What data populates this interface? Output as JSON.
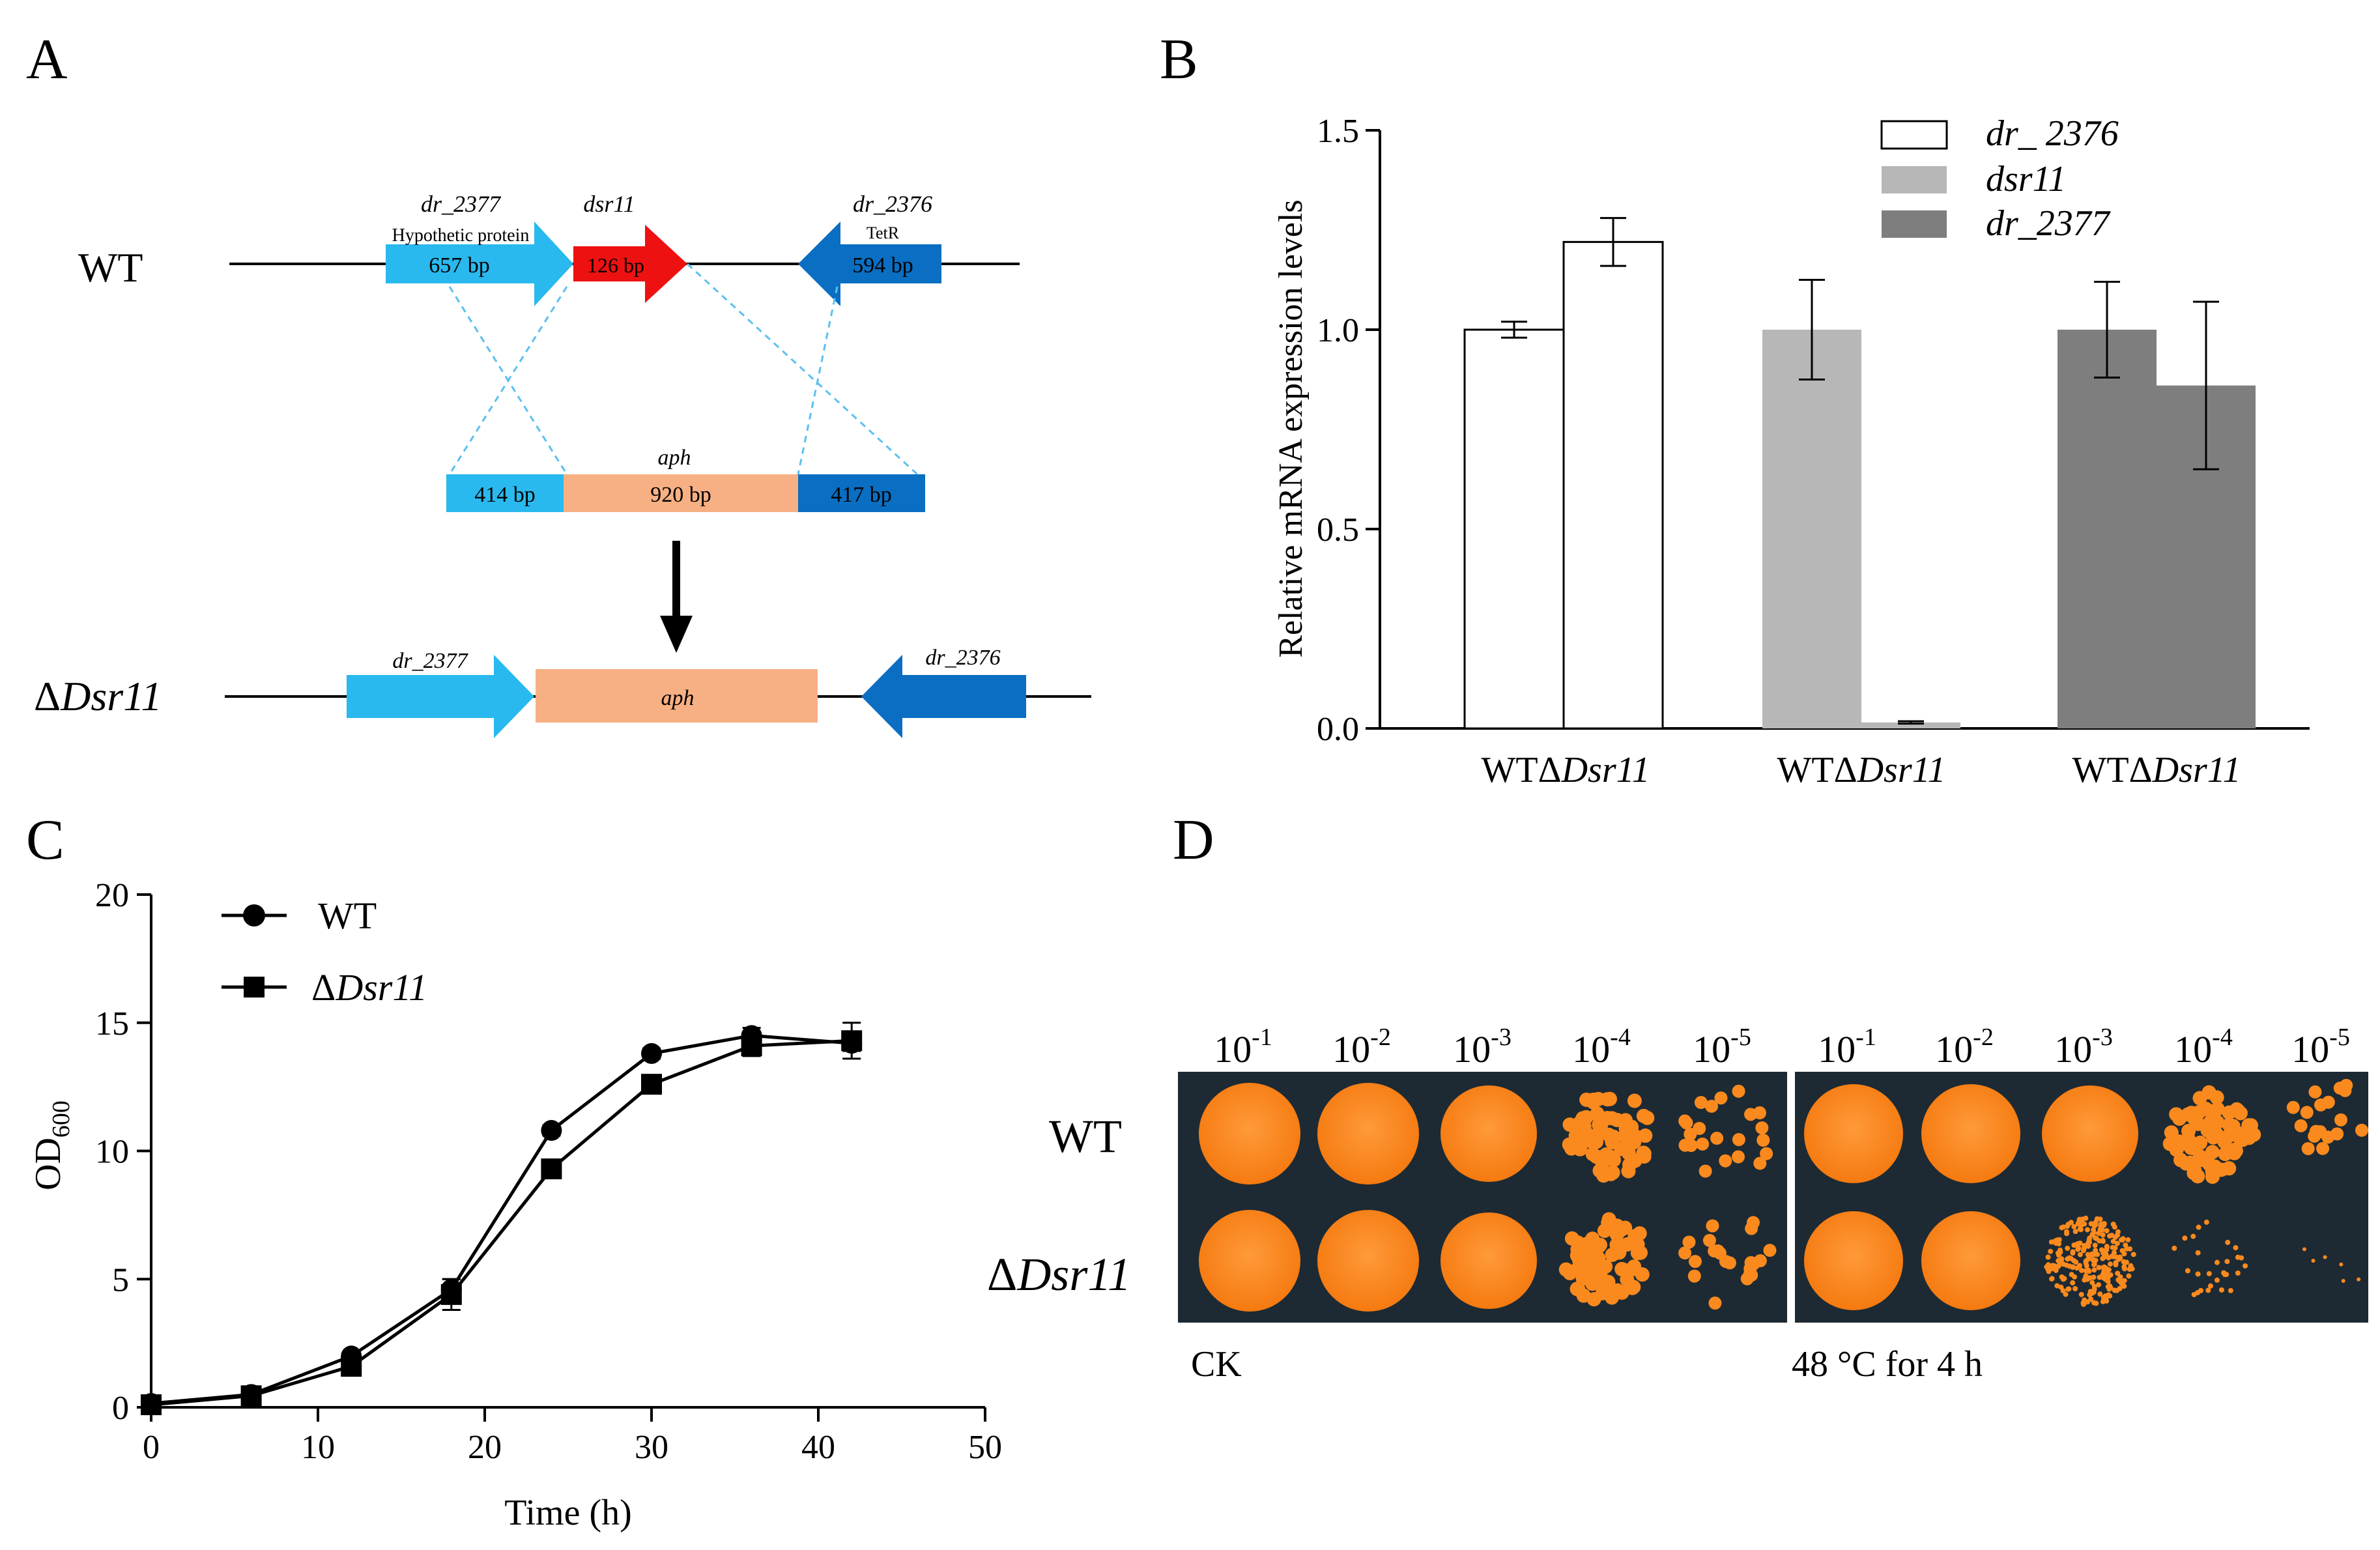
{
  "colors": {
    "light_blue": "#29B9EE",
    "dark_blue": "#0A6EC2",
    "red": "#EE1111",
    "peach": "#F7B083",
    "bar_white": "#FFFFFF",
    "bar_light_gray": "#B7B7B7",
    "bar_dark_gray": "#7E7E7E",
    "plate_bg": "#1D2A33",
    "colony_orange": "#FA8A1E"
  },
  "panelA": {
    "label": "A",
    "wt_label": "WT",
    "mutant_prefix": "Δ",
    "mutant_italic": "Dsr11",
    "genes": {
      "g2377_name": "dr_2377",
      "g2377_desc": "Hypothetic protein",
      "g2377_size": "657 bp",
      "dsr11_name": "dsr11",
      "dsr11_size": "126 bp",
      "g2376_name": "dr_2376",
      "g2376_desc": "TetR",
      "g2376_size": "594 bp"
    },
    "construct": {
      "left_size": "414 bp",
      "aph_name": "aph",
      "aph_size": "920 bp",
      "right_size": "417 bp"
    },
    "mutant_genes": {
      "left": "dr_2377",
      "middle": "aph",
      "right": "dr_2376"
    }
  },
  "panelB": {
    "label": "B",
    "legend": [
      "dr_ 2376",
      "dsr11",
      "dr_2377"
    ],
    "group_labels": [
      "WTΔDsr11",
      "WTΔDsr11",
      "WTΔDsr11"
    ],
    "group_prefix": "WTΔ",
    "group_italic": "Dsr11"
  },
  "panelC": {
    "label": "C",
    "legend": [
      "WT",
      "ΔDsr11"
    ],
    "legend_mutant_prefix": "Δ",
    "legend_mutant_italic": "Dsr11"
  },
  "panelD": {
    "label": "D",
    "dilutions": [
      "10-1",
      "10-2",
      "10-3",
      "10-4",
      "10-5"
    ],
    "row_wt": "WT",
    "row_mutant_prefix": "Δ",
    "row_mutant_italic": "Dsr11",
    "left_caption": "CK",
    "right_caption": "48 °C for 4 h"
  },
  "chart_data": [
    {
      "type": "bar",
      "panel": "B",
      "title": "",
      "ylabel": "Relative mRNA expression levels",
      "xlabel": "",
      "ylim": [
        0,
        1.5
      ],
      "yticks": [
        "0.0",
        "0.5",
        "1.0",
        "1.5"
      ],
      "groups": [
        {
          "name": "dr_ 2376",
          "categories": [
            "WT",
            "ΔDsr11"
          ],
          "values": [
            1.0,
            1.22
          ],
          "errors": [
            0.02,
            0.06
          ]
        },
        {
          "name": "dsr11",
          "categories": [
            "WT",
            "ΔDsr11"
          ],
          "values": [
            1.0,
            0.015
          ],
          "errors": [
            0.125,
            0.003
          ]
        },
        {
          "name": "dr_2377",
          "categories": [
            "WT",
            "ΔDsr11"
          ],
          "values": [
            1.0,
            0.86
          ],
          "errors": [
            0.12,
            0.21
          ]
        }
      ]
    },
    {
      "type": "line",
      "panel": "C",
      "xlabel": "Time (h)",
      "ylabel": "OD600",
      "ylabel_main": "OD",
      "ylabel_sub": "600",
      "xlim": [
        0,
        50
      ],
      "ylim": [
        0,
        20
      ],
      "xticks": [
        "0",
        "10",
        "20",
        "30",
        "40",
        "50"
      ],
      "yticks": [
        "0",
        "5",
        "10",
        "15",
        "20"
      ],
      "x": [
        0,
        6,
        12,
        18,
        24,
        30,
        36,
        42
      ],
      "series": [
        {
          "name": "WT",
          "marker": "circle",
          "values": [
            0.15,
            0.5,
            2.0,
            4.6,
            10.8,
            13.8,
            14.5,
            14.2
          ],
          "errors": [
            0.1,
            0.1,
            0.15,
            0.4,
            0.2,
            0.2,
            0.3,
            0.3
          ]
        },
        {
          "name": "ΔDsr11",
          "marker": "square",
          "values": [
            0.1,
            0.45,
            1.6,
            4.4,
            9.3,
            12.6,
            14.1,
            14.3
          ],
          "errors": [
            0.1,
            0.1,
            0.15,
            0.6,
            0.3,
            0.2,
            0.4,
            0.7
          ]
        }
      ]
    }
  ]
}
